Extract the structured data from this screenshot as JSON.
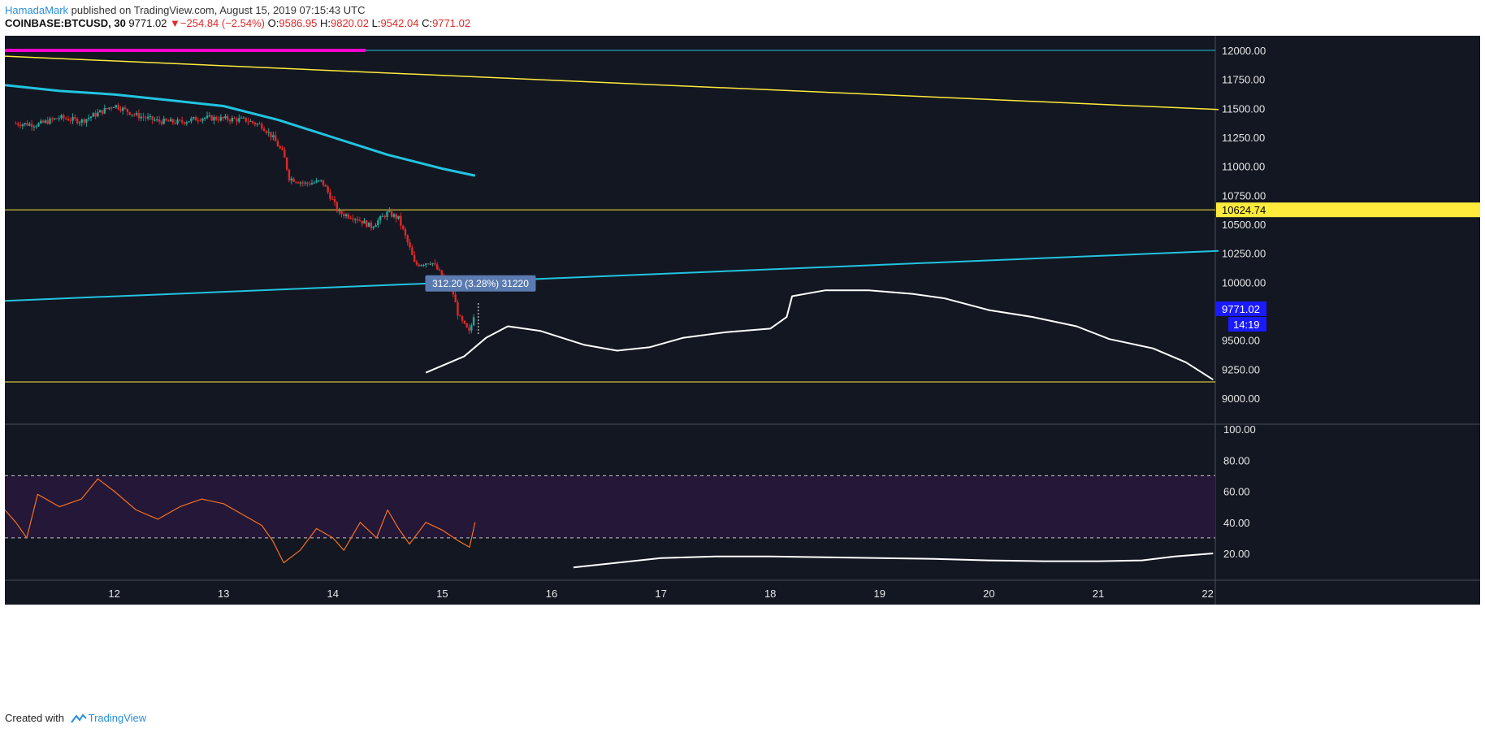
{
  "header": {
    "author": "HamadaMark",
    "published": "published on TradingView.com, August 15, 2019 07:15:43 UTC",
    "symbol": "COINBASE:BTCUSD, 30",
    "last": "9771.02",
    "change_arrow": "▼",
    "change": "−254.84 (−2.54%)",
    "o_label": "O:",
    "o": "9586.95",
    "h_label": "H:",
    "h": "9820.02",
    "l_label": "L:",
    "l": "9542.04",
    "c_label": "C:",
    "c": "9771.02"
  },
  "footer": {
    "created": "Created with",
    "brand": "TradingView"
  },
  "colors": {
    "background": "#131722",
    "up": "#26a69a",
    "down": "#e02828",
    "cyan": "#22c4e0",
    "yellow": "#ffeb3b",
    "magenta": "#ff00cc",
    "rsi": "#f5711f",
    "rsi_band": "#241738",
    "blue_label": "#1a1aff"
  },
  "chart_data": [
    {
      "type": "candlestick",
      "title": "",
      "ylim": [
        8900,
        12150
      ],
      "x_ticks": [
        "12",
        "13",
        "14",
        "15",
        "16",
        "17",
        "18",
        "19",
        "20",
        "21",
        "22"
      ],
      "y_ticks": [
        "12000.00",
        "11750.00",
        "11500.00",
        "11250.00",
        "11000.00",
        "10750.00",
        "10500.00",
        "10250.00",
        "10000.00",
        "9500.00",
        "9250.00",
        "9000.00"
      ],
      "price_path": [
        [
          11.1,
          11370
        ],
        [
          11.3,
          11360
        ],
        [
          11.5,
          11420
        ],
        [
          11.7,
          11390
        ],
        [
          11.9,
          11480
        ],
        [
          12.0,
          11530
        ],
        [
          12.2,
          11440
        ],
        [
          12.4,
          11390
        ],
        [
          12.6,
          11380
        ],
        [
          12.8,
          11420
        ],
        [
          13.0,
          11410
        ],
        [
          13.2,
          11400
        ],
        [
          13.35,
          11350
        ],
        [
          13.45,
          11250
        ],
        [
          13.55,
          11100
        ],
        [
          13.6,
          10900
        ],
        [
          13.75,
          10850
        ],
        [
          13.9,
          10870
        ],
        [
          14.0,
          10700
        ],
        [
          14.05,
          10600
        ],
        [
          14.2,
          10560
        ],
        [
          14.35,
          10480
        ],
        [
          14.5,
          10600
        ],
        [
          14.6,
          10550
        ],
        [
          14.7,
          10300
        ],
        [
          14.75,
          10150
        ],
        [
          14.9,
          10180
        ],
        [
          15.0,
          10050
        ],
        [
          15.1,
          9900
        ],
        [
          15.15,
          9700
        ],
        [
          15.25,
          9560
        ],
        [
          15.3,
          9771
        ]
      ],
      "last_price": "9771.02",
      "countdown": "14:19",
      "horizontal_levels": {
        "upper_cyan": 12000,
        "yellow_mid": 10624.74,
        "yellow_mid_label": "10624.74",
        "yellow_low": 9140
      },
      "trendline_yellow": [
        [
          11.0,
          11950
        ],
        [
          22.1,
          11490
        ]
      ],
      "trendline_cyan": [
        [
          11.0,
          9840
        ],
        [
          22.1,
          10270
        ]
      ],
      "moving_average_cyan": [
        [
          11.0,
          11700
        ],
        [
          11.5,
          11650
        ],
        [
          12.0,
          11620
        ],
        [
          12.5,
          11570
        ],
        [
          13.0,
          11520
        ],
        [
          13.5,
          11400
        ],
        [
          14.0,
          11250
        ],
        [
          14.5,
          11100
        ],
        [
          15.0,
          10980
        ],
        [
          15.3,
          10920
        ]
      ],
      "magenta_segment": [
        [
          11.0,
          12000
        ],
        [
          14.3,
          12000
        ]
      ],
      "projection_path": [
        [
          14.85,
          9220
        ],
        [
          15.2,
          9360
        ],
        [
          15.4,
          9520
        ],
        [
          15.6,
          9620
        ],
        [
          15.9,
          9580
        ],
        [
          16.3,
          9460
        ],
        [
          16.6,
          9410
        ],
        [
          16.9,
          9440
        ],
        [
          17.2,
          9520
        ],
        [
          17.6,
          9570
        ],
        [
          18.0,
          9600
        ],
        [
          18.15,
          9700
        ],
        [
          18.2,
          9880
        ],
        [
          18.5,
          9930
        ],
        [
          18.9,
          9930
        ],
        [
          19.3,
          9900
        ],
        [
          19.6,
          9860
        ],
        [
          20.0,
          9760
        ],
        [
          20.4,
          9700
        ],
        [
          20.8,
          9620
        ],
        [
          21.1,
          9510
        ],
        [
          21.5,
          9430
        ],
        [
          21.8,
          9310
        ],
        [
          22.05,
          9160
        ]
      ],
      "measure_label": "312.20 (3.28%) 31220"
    },
    {
      "type": "line",
      "title": "",
      "ylim": [
        5,
        105
      ],
      "y_ticks": [
        "100.00",
        "80.00",
        "60.00",
        "40.00",
        "20.00"
      ],
      "band": [
        30,
        70
      ],
      "series": [
        {
          "values": [
            [
              11.0,
              48
            ],
            [
              11.1,
              40
            ],
            [
              11.2,
              30
            ],
            [
              11.3,
              58
            ],
            [
              11.5,
              50
            ],
            [
              11.7,
              55
            ],
            [
              11.85,
              68
            ],
            [
              12.0,
              60
            ],
            [
              12.2,
              48
            ],
            [
              12.4,
              42
            ],
            [
              12.6,
              50
            ],
            [
              12.8,
              55
            ],
            [
              13.0,
              52
            ],
            [
              13.2,
              44
            ],
            [
              13.35,
              38
            ],
            [
              13.45,
              28
            ],
            [
              13.55,
              14
            ],
            [
              13.7,
              22
            ],
            [
              13.85,
              36
            ],
            [
              14.0,
              30
            ],
            [
              14.1,
              22
            ],
            [
              14.25,
              40
            ],
            [
              14.4,
              30
            ],
            [
              14.5,
              48
            ],
            [
              14.6,
              36
            ],
            [
              14.7,
              26
            ],
            [
              14.85,
              40
            ],
            [
              15.0,
              35
            ],
            [
              15.15,
              28
            ],
            [
              15.25,
              24
            ],
            [
              15.3,
              40
            ]
          ]
        },
        {
          "values": [
            [
              16.2,
              11
            ],
            [
              16.6,
              14
            ],
            [
              17.0,
              17
            ],
            [
              17.5,
              18
            ],
            [
              18.0,
              18
            ],
            [
              18.5,
              17.5
            ],
            [
              19.0,
              17
            ],
            [
              19.5,
              16.5
            ],
            [
              20.0,
              15.5
            ],
            [
              20.5,
              15
            ],
            [
              21.0,
              15
            ],
            [
              21.4,
              15.5
            ],
            [
              21.7,
              18
            ],
            [
              22.05,
              20
            ]
          ]
        }
      ]
    }
  ]
}
